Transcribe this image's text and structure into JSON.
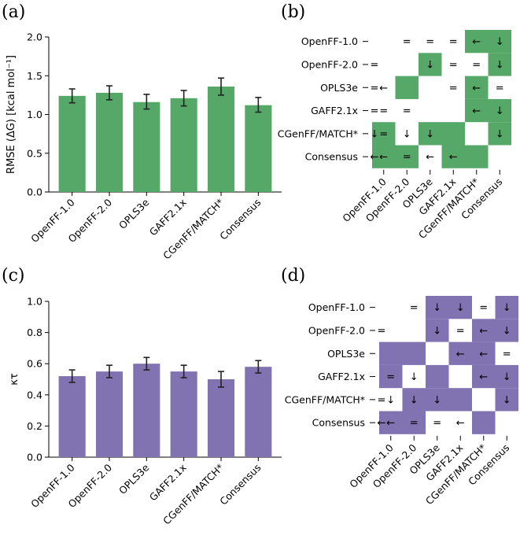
{
  "chart_data": [
    {
      "panel": "(a)",
      "type": "bar",
      "categories": [
        "OpenFF-1.0",
        "OpenFF-2.0",
        "OPLS3e",
        "GAFF2.1x",
        "CGenFF/MATCH*",
        "Consensus"
      ],
      "values": [
        1.24,
        1.28,
        1.16,
        1.21,
        1.36,
        1.12
      ],
      "error_low": [
        1.15,
        1.19,
        1.07,
        1.11,
        1.25,
        1.03
      ],
      "error_high": [
        1.33,
        1.37,
        1.26,
        1.31,
        1.47,
        1.22
      ],
      "ylabel": "RMSE (ΔG) [kcal mol⁻¹]",
      "ylim": [
        0,
        2.0
      ],
      "yticks": [
        "0.0",
        "0.5",
        "1.0",
        "1.5",
        "2.0"
      ],
      "ytick_values": [
        0,
        0.5,
        1.0,
        1.5,
        2.0
      ],
      "color": "#55a868"
    },
    {
      "panel": "(b)",
      "type": "table",
      "labels": [
        "OpenFF-1.0",
        "OpenFF-2.0",
        "OPLS3e",
        "GAFF2.1x",
        "CGenFF/MATCH*",
        "Consensus"
      ],
      "cells": [
        [
          "",
          "",
          "=",
          "=",
          "=",
          "←",
          "↓"
        ],
        [
          "=",
          "",
          "",
          "↓",
          "=",
          "=",
          "↓"
        ],
        [
          "=",
          "←",
          "",
          "",
          "=",
          "←",
          "="
        ],
        [
          "=",
          "=",
          "=",
          "",
          "",
          "←",
          "↓"
        ],
        [
          "↓",
          "=",
          "↓",
          "↓",
          "",
          "",
          "↓"
        ],
        [
          "←",
          "←",
          "=",
          "←",
          "←",
          "",
          ""
        ]
      ],
      "cells_note": "7 columns: first column is the label separator symbol, then 6 matrix cells",
      "shaded": [
        [
          0,
          0,
          0,
          0,
          1,
          1
        ],
        [
          0,
          0,
          1,
          0,
          0,
          1
        ],
        [
          0,
          1,
          0,
          0,
          1,
          0
        ],
        [
          0,
          0,
          0,
          0,
          1,
          1
        ],
        [
          1,
          0,
          1,
          1,
          0,
          1
        ],
        [
          1,
          1,
          0,
          1,
          1,
          0
        ]
      ],
      "color": "#55a868"
    },
    {
      "panel": "(c)",
      "type": "bar",
      "categories": [
        "OpenFF-1.0",
        "OpenFF-2.0",
        "OPLS3e",
        "GAFF2.1x",
        "CGenFF/MATCH*",
        "Consensus"
      ],
      "values": [
        0.52,
        0.55,
        0.6,
        0.55,
        0.5,
        0.58
      ],
      "error_low": [
        0.48,
        0.51,
        0.56,
        0.51,
        0.45,
        0.54
      ],
      "error_high": [
        0.56,
        0.59,
        0.64,
        0.59,
        0.55,
        0.62
      ],
      "ylabel": "κτ",
      "ylim": [
        0,
        1.0
      ],
      "yticks": [
        "0.0",
        "0.2",
        "0.4",
        "0.6",
        "0.8",
        "1.0"
      ],
      "ytick_values": [
        0,
        0.2,
        0.4,
        0.6,
        0.8,
        1.0
      ],
      "color": "#8172b2"
    },
    {
      "panel": "(d)",
      "type": "table",
      "labels": [
        "OpenFF-1.0",
        "OpenFF-2.0",
        "OPLS3e",
        "GAFF2.1x",
        "CGenFF/MATCH*",
        "Consensus"
      ],
      "cells": [
        [
          "",
          "",
          "=",
          "↓",
          "↓",
          "=",
          "↓"
        ],
        [
          "=",
          "",
          "",
          "↓",
          "=",
          "←",
          "↓"
        ],
        [
          "",
          "",
          "",
          "",
          "←",
          "←",
          "="
        ],
        [
          "",
          "=",
          "↓",
          "",
          "",
          "←",
          "↓"
        ],
        [
          "=",
          "↓",
          "↓",
          "↓",
          "",
          "",
          "↓"
        ],
        [
          "←",
          "←",
          "=",
          "=",
          "←",
          "",
          ""
        ]
      ],
      "shaded": [
        [
          0,
          0,
          1,
          1,
          0,
          1
        ],
        [
          0,
          0,
          1,
          0,
          1,
          1
        ],
        [
          1,
          1,
          0,
          1,
          1,
          0
        ],
        [
          1,
          0,
          1,
          0,
          1,
          1
        ],
        [
          0,
          1,
          1,
          1,
          0,
          1
        ],
        [
          1,
          1,
          0,
          0,
          1,
          0
        ]
      ],
      "color": "#8172b2"
    }
  ]
}
